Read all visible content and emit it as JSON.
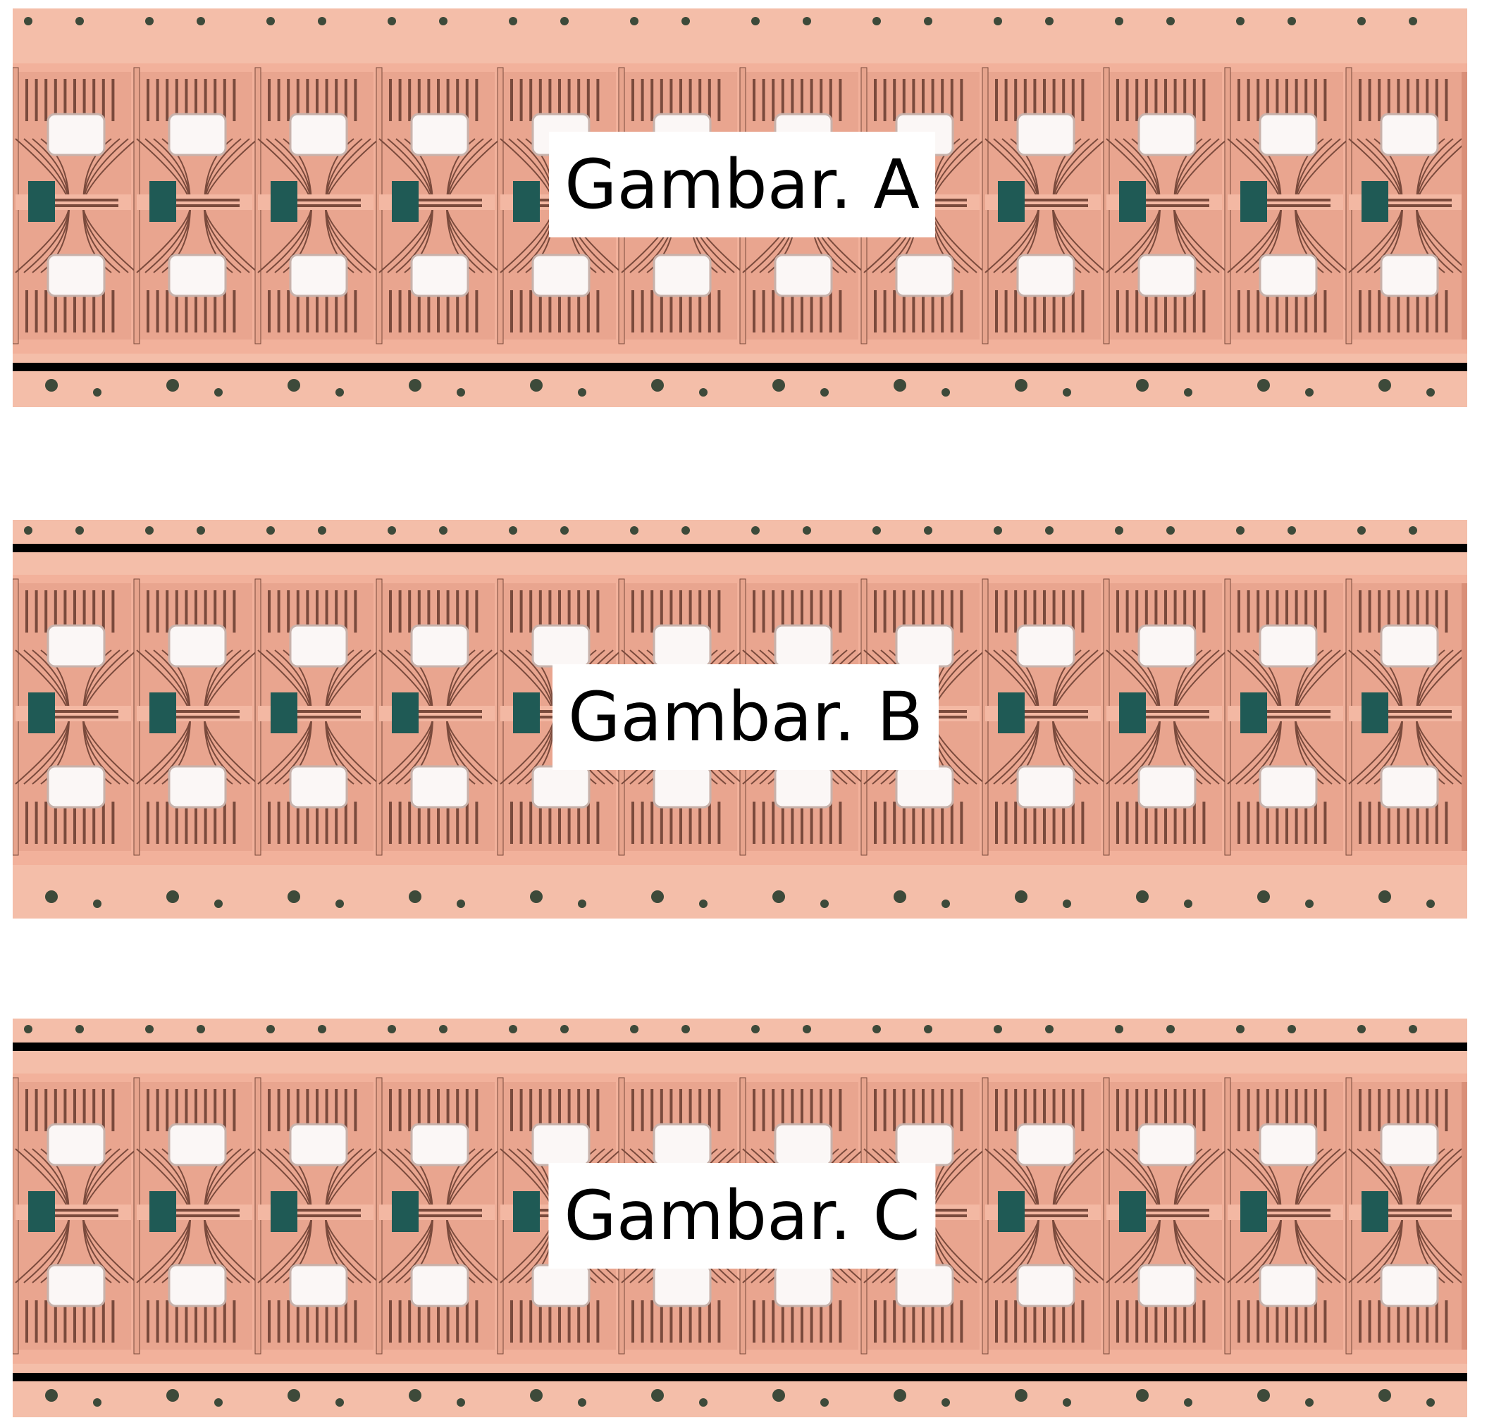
{
  "figure": {
    "panels": [
      {
        "label": "Gambar. A",
        "rails": "bottom"
      },
      {
        "label": "Gambar. B",
        "rails": "top"
      },
      {
        "label": "Gambar. C",
        "rails": "top-and-bottom"
      }
    ],
    "unit_count_per_strip": 12,
    "colors": {
      "copper": "#f2b19b",
      "copper_dark": "#d98f78",
      "trace": "#7a4a3c",
      "die_pad": "#1f5a55",
      "window": "#fbf7f6",
      "rail": "#000000",
      "hole": "#3d4a3a"
    }
  }
}
